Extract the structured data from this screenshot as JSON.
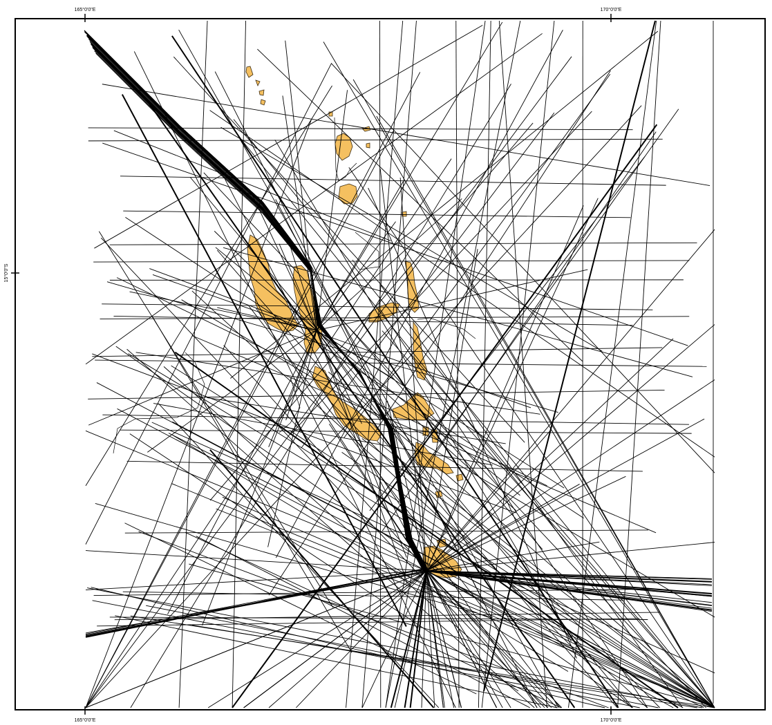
{
  "map": {
    "labels": {
      "lon_165_top": "165°0'0\"E",
      "lon_170_top": "170°0'0\"E",
      "lon_165_bottom": "165°0'0\"E",
      "lon_170_bottom": "170°0'0\"E",
      "lat_15": "15°0'0\"S"
    },
    "colors": {
      "land": "#f5c060",
      "track": "#000000",
      "frame": "#000000"
    },
    "islands_count_hint": "orange landmasses (Vanuatu island chain)",
    "track_lines": "dense black survey ship tracks"
  }
}
